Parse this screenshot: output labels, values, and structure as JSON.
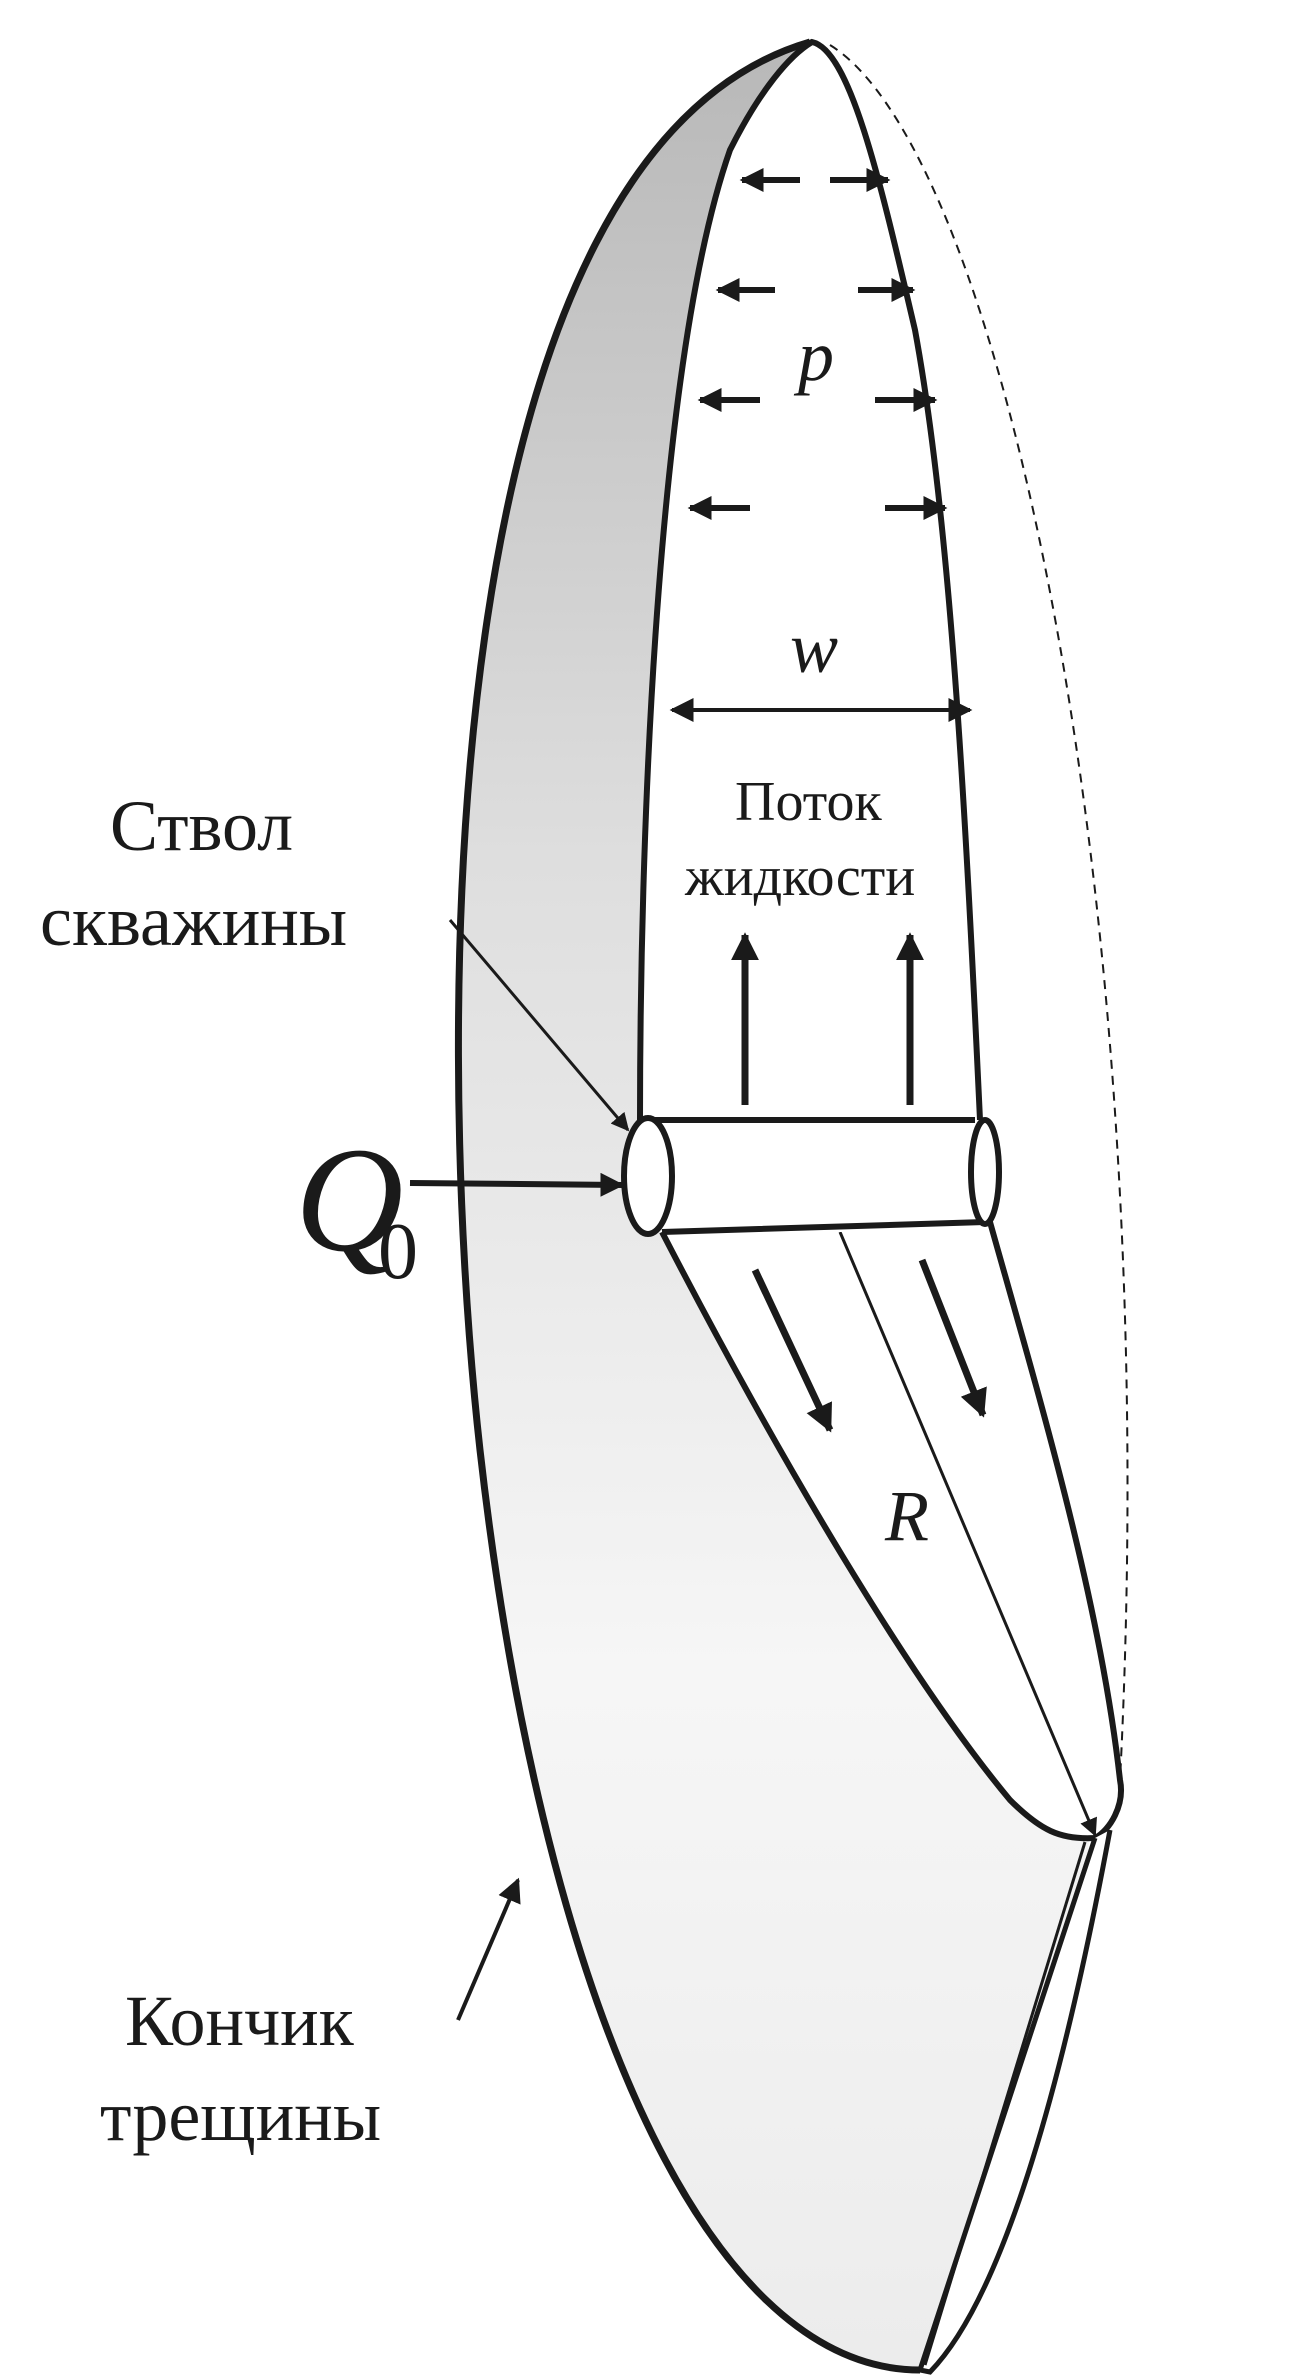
{
  "labels": {
    "pressure": "p",
    "width": "w",
    "flow_line1": "Поток",
    "flow_line2": "жидкости",
    "wellbore_line1": "Ствол",
    "wellbore_line2": "скважины",
    "injection": "Q",
    "injection_subscript": "0",
    "radius": "R",
    "tip_line1": "Кончик",
    "tip_line2": "трещины"
  },
  "colors": {
    "stroke": "#1a1a1a",
    "shade_dark": "#b9b9b9",
    "shade_light": "#fafafa",
    "background": "#ffffff"
  }
}
